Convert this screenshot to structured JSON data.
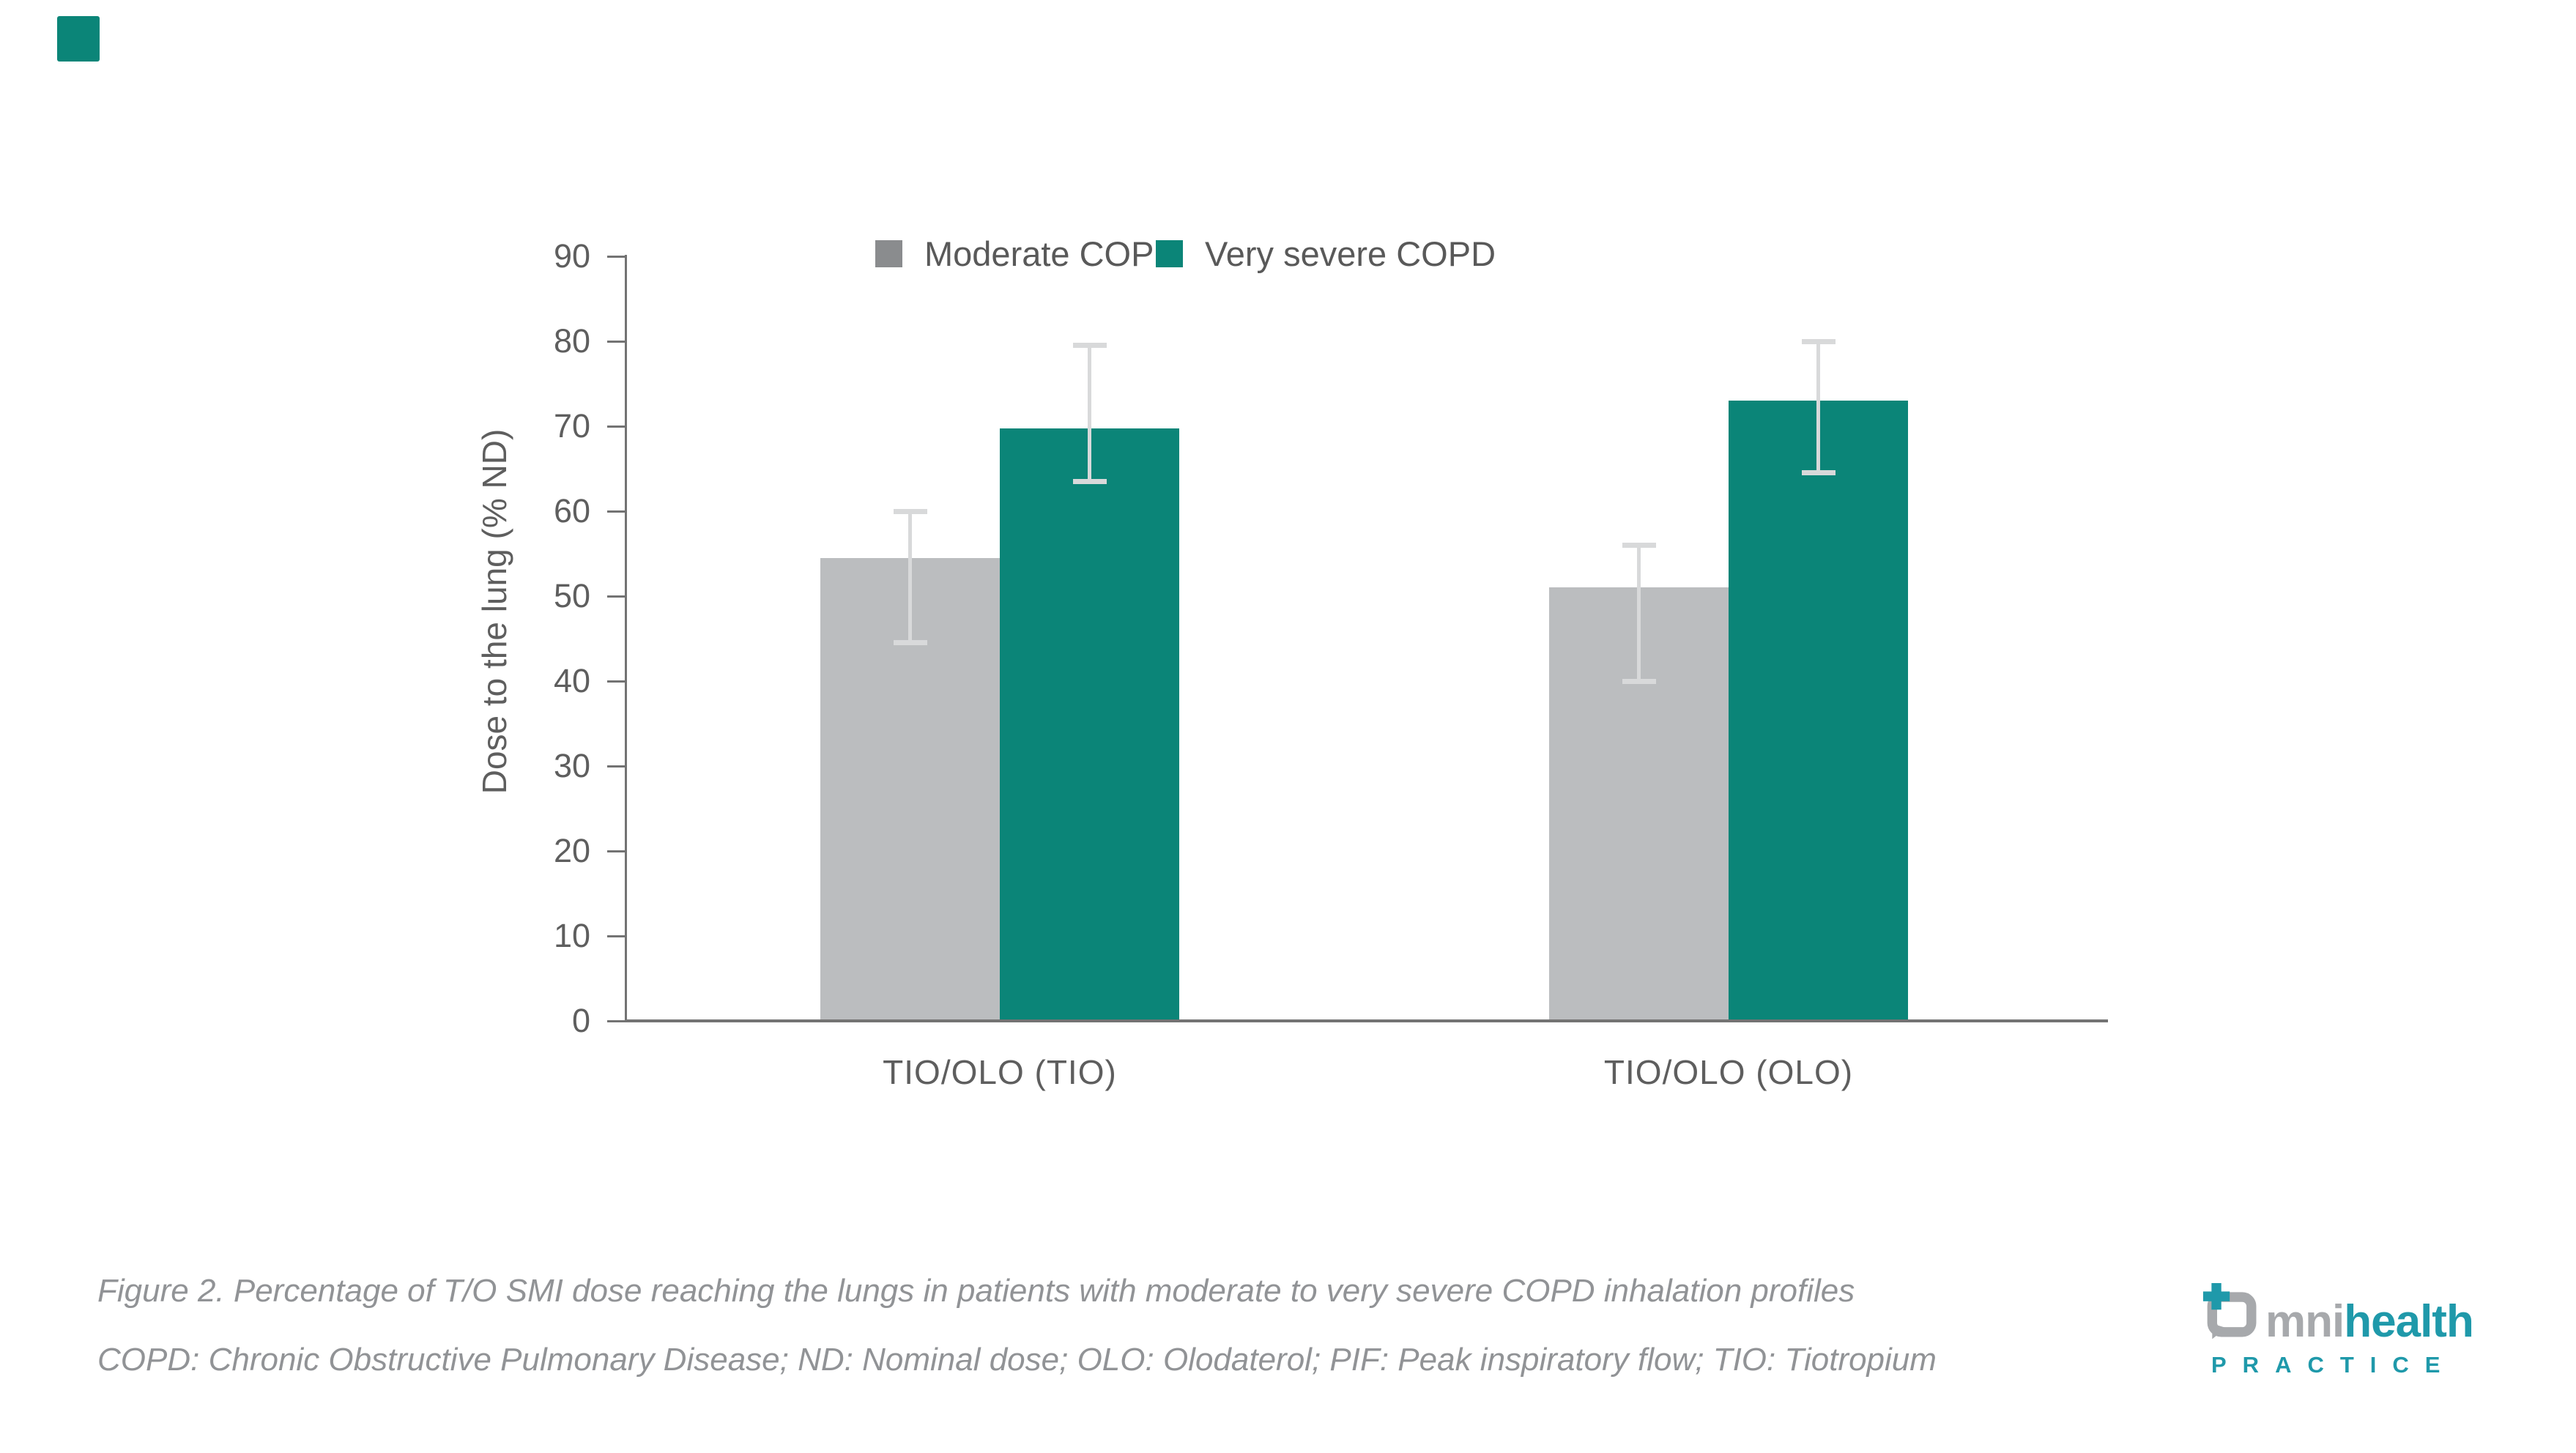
{
  "colors": {
    "teal": "#0B8578",
    "bar_gray": "#BBBDBF",
    "legend_gray": "#8A8C8E",
    "error_bar": "#D8D9DA",
    "axis": "#737373",
    "tick_text": "#5E5E5E",
    "caption_text": "#919396",
    "logo_gray": "#A7A9AC",
    "logo_teal": "#1F99AA"
  },
  "chart_data": {
    "type": "bar",
    "title": "",
    "categories": [
      "TIO/OLO (TIO)",
      "TIO/OLO (OLO)"
    ],
    "series": [
      {
        "name": "Moderate COPD",
        "legend_color": "#8A8C8E",
        "bar_color": "#BBBDBF",
        "values": [
          54.5,
          51
        ],
        "error_low": [
          44.5,
          40
        ],
        "error_high": [
          60,
          56
        ]
      },
      {
        "name": "Very severe COPD",
        "legend_color": "#0B8578",
        "bar_color": "#0B8578",
        "values": [
          69.7,
          73
        ],
        "error_low": [
          63.5,
          64.5
        ],
        "error_high": [
          79.5,
          80
        ]
      }
    ],
    "xlabel": "",
    "ylabel": "Dose to the lung (% ND)",
    "ylim": [
      0,
      90
    ],
    "yticks": [
      0,
      10,
      20,
      30,
      40,
      50,
      60,
      70,
      80,
      90
    ],
    "grid": false,
    "legend_position": "top",
    "error_bars": true
  },
  "caption": {
    "line1": "Figure 2. Percentage of T/O SMI dose reaching the lungs in patients with moderate to very severe COPD inhalation profiles",
    "line2": "COPD: Chronic Obstructive Pulmonary Disease; ND: Nominal dose; OLO: Olodaterol; PIF: Peak inspiratory flow; TIO: Tiotropium"
  },
  "logo": {
    "word_gray": "mni",
    "word_teal": "health",
    "subtitle": "PRACTICE"
  }
}
